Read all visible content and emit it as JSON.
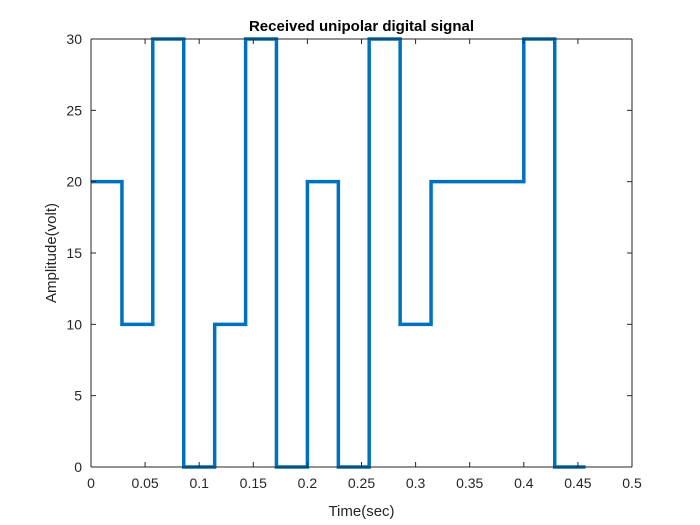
{
  "chart_data": {
    "type": "line",
    "title": "Received unipolar digital signal",
    "xlabel": "Time(sec)",
    "ylabel": "Amplitude(volt)",
    "xlim": [
      0,
      0.5
    ],
    "ylim": [
      0,
      30
    ],
    "xticks": [
      0,
      0.05,
      0.1,
      0.15,
      0.2,
      0.25,
      0.3,
      0.35,
      0.4,
      0.45,
      0.5
    ],
    "xtick_labels": [
      "0",
      "0.05",
      "0.1",
      "0.15",
      "0.2",
      "0.25",
      "0.3",
      "0.35",
      "0.4",
      "0.45",
      "0.5"
    ],
    "yticks": [
      0,
      5,
      10,
      15,
      20,
      25,
      30
    ],
    "ytick_labels": [
      "0",
      "5",
      "10",
      "15",
      "20",
      "25",
      "30"
    ],
    "grid": false,
    "box": true,
    "series": [
      {
        "color": "#0072BD",
        "step": "post",
        "x": [
          0,
          0.0286,
          0.0571,
          0.0857,
          0.1143,
          0.1429,
          0.1714,
          0.2,
          0.2286,
          0.2571,
          0.2857,
          0.3143,
          0.3429,
          0.3714,
          0.4,
          0.4286,
          0.4571
        ],
        "y": [
          20,
          10,
          30,
          0,
          10,
          30,
          0,
          20,
          0,
          30,
          10,
          20,
          20,
          20,
          30,
          0,
          0
        ]
      }
    ]
  }
}
